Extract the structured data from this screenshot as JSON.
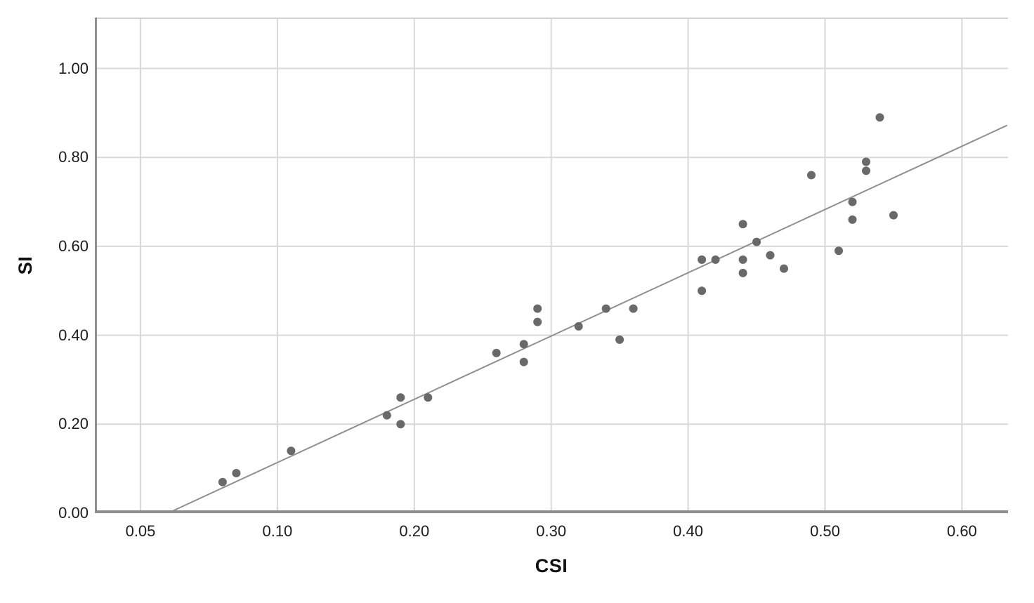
{
  "figure": {
    "x_axis_label": "CSI",
    "y_axis_label": "SI"
  },
  "chart_data": {
    "type": "scatter",
    "title": "",
    "xlabel": "CSI",
    "ylabel": "SI",
    "x_tick_labels": [
      "0.05",
      "0.10",
      "0.20",
      "0.30",
      "0.40",
      "0.50",
      "0.60"
    ],
    "x_ticks": [
      0.05,
      0.1,
      0.2,
      0.3,
      0.4,
      0.5,
      0.6
    ],
    "y_tick_labels": [
      "0.00",
      "0.20",
      "0.40",
      "0.60",
      "0.80",
      "1.00"
    ],
    "y_ticks": [
      0.0,
      0.2,
      0.4,
      0.6,
      0.8,
      1.0
    ],
    "x_scale_note": "x tick marks are equally spaced although tick values are not (non-linear value axis)",
    "ylim": [
      0,
      1.113
    ],
    "grid": true,
    "legend": false,
    "points": [
      [
        0.08,
        0.07
      ],
      [
        0.085,
        0.09
      ],
      [
        0.11,
        0.14
      ],
      [
        0.18,
        0.22
      ],
      [
        0.19,
        0.2
      ],
      [
        0.19,
        0.26
      ],
      [
        0.21,
        0.26
      ],
      [
        0.26,
        0.36
      ],
      [
        0.28,
        0.34
      ],
      [
        0.28,
        0.38
      ],
      [
        0.29,
        0.43
      ],
      [
        0.29,
        0.46
      ],
      [
        0.32,
        0.42
      ],
      [
        0.34,
        0.46
      ],
      [
        0.35,
        0.39
      ],
      [
        0.36,
        0.46
      ],
      [
        0.41,
        0.5
      ],
      [
        0.41,
        0.57
      ],
      [
        0.42,
        0.57
      ],
      [
        0.44,
        0.54
      ],
      [
        0.44,
        0.57
      ],
      [
        0.44,
        0.65
      ],
      [
        0.45,
        0.61
      ],
      [
        0.46,
        0.58
      ],
      [
        0.47,
        0.55
      ],
      [
        0.49,
        0.76
      ],
      [
        0.51,
        0.59
      ],
      [
        0.52,
        0.66
      ],
      [
        0.52,
        0.7
      ],
      [
        0.53,
        0.77
      ],
      [
        0.53,
        0.79
      ],
      [
        0.54,
        0.89
      ],
      [
        0.55,
        0.67
      ]
    ],
    "trendline": {
      "x1": 0.06,
      "y1": 0.0,
      "x2": 0.633,
      "y2": 0.872
    },
    "colors": {
      "point": "#696969",
      "trendline": "#8f8f8f",
      "grid": "#d9d9d9",
      "axis": "#8f8f8f",
      "text": "#1c1c1c"
    }
  }
}
